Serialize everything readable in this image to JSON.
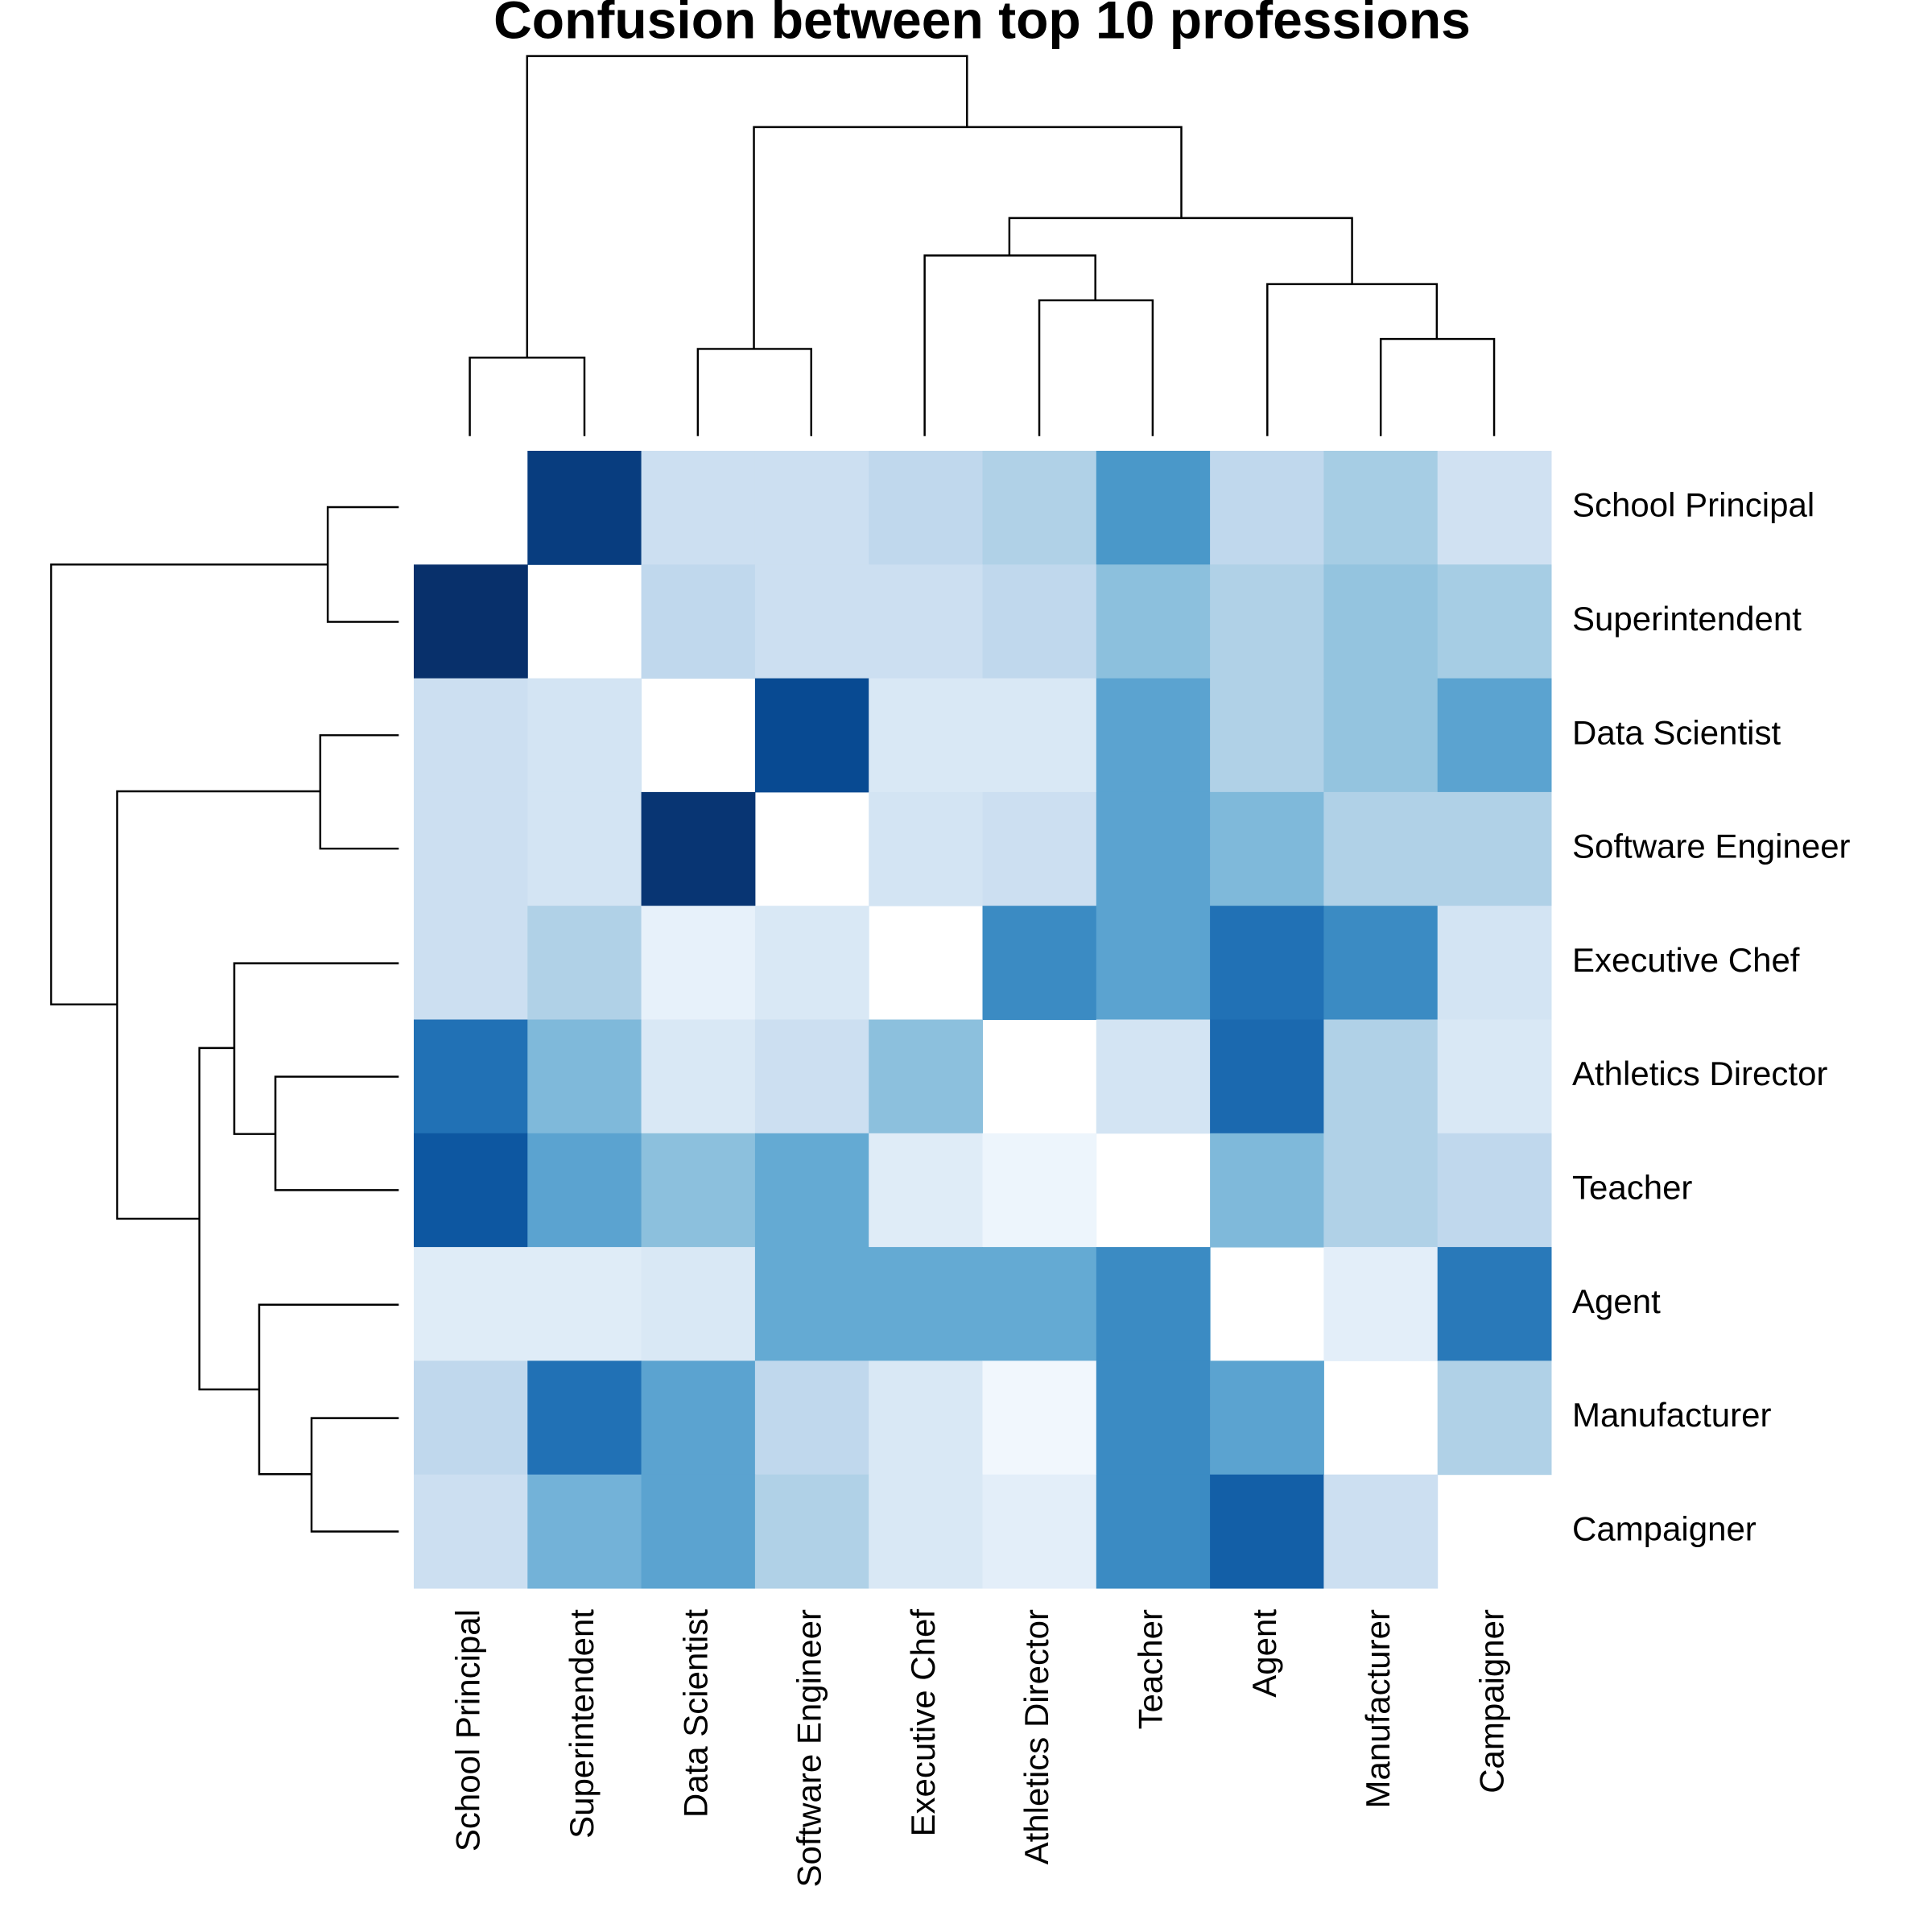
{
  "chart_data": {
    "type": "heatmap",
    "title": "Confusion between top 10 professions",
    "rows": [
      "School Principal",
      "Superintendent",
      "Data Scientist",
      "Software Engineer",
      "Executive Chef",
      "Athletics Director",
      "Teacher",
      "Agent",
      "Manufacturer",
      "Campaigner"
    ],
    "columns": [
      "School Principal",
      "Superintendent",
      "Data Scientist",
      "Software Engineer",
      "Executive Chef",
      "Athletics Director",
      "Teacher",
      "Agent",
      "Manufacturer",
      "Campaigner"
    ],
    "values": [
      [
        null,
        0.95,
        0.22,
        0.22,
        0.27,
        0.32,
        0.6,
        0.27,
        0.35,
        0.2
      ],
      [
        1.0,
        null,
        0.27,
        0.22,
        0.22,
        0.27,
        0.42,
        0.32,
        0.4,
        0.35
      ],
      [
        0.22,
        0.18,
        null,
        0.9,
        0.15,
        0.15,
        0.55,
        0.32,
        0.4,
        0.55
      ],
      [
        0.22,
        0.18,
        0.98,
        null,
        0.18,
        0.22,
        0.55,
        0.45,
        0.32,
        0.32
      ],
      [
        0.22,
        0.32,
        0.08,
        0.15,
        null,
        0.65,
        0.55,
        0.75,
        0.65,
        0.18
      ],
      [
        0.75,
        0.45,
        0.15,
        0.22,
        0.42,
        null,
        0.18,
        0.78,
        0.32,
        0.15
      ],
      [
        0.85,
        0.55,
        0.42,
        0.52,
        0.12,
        0.05,
        null,
        0.45,
        0.32,
        0.27
      ],
      [
        0.12,
        0.12,
        0.15,
        0.52,
        0.52,
        0.52,
        0.65,
        null,
        0.1,
        0.72
      ],
      [
        0.27,
        0.75,
        0.55,
        0.27,
        0.15,
        0.03,
        0.65,
        0.55,
        null,
        0.32
      ],
      [
        0.22,
        0.48,
        0.55,
        0.32,
        0.15,
        0.1,
        0.65,
        0.82,
        0.22,
        null
      ]
    ],
    "zlim": [
      0,
      1
    ],
    "colormap": [
      "#f7fbff",
      "#deebf7",
      "#c6dbef",
      "#9ecae1",
      "#6baed6",
      "#4292c6",
      "#2171b5",
      "#08519c",
      "#08306b"
    ]
  }
}
